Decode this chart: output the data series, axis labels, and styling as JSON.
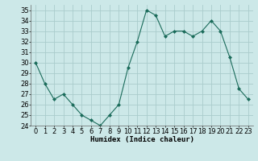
{
  "x": [
    0,
    1,
    2,
    3,
    4,
    5,
    6,
    7,
    8,
    9,
    10,
    11,
    12,
    13,
    14,
    15,
    16,
    17,
    18,
    19,
    20,
    21,
    22,
    23
  ],
  "y": [
    30,
    28,
    26.5,
    27,
    26,
    25,
    24.5,
    24,
    25,
    26,
    29.5,
    32,
    35,
    34.5,
    32.5,
    33,
    33,
    32.5,
    33,
    34,
    33,
    30.5,
    27.5,
    26.5
  ],
  "line_color": "#1a6b5a",
  "marker_color": "#1a6b5a",
  "bg_color": "#cce8e8",
  "grid_color": "#aacccc",
  "xlabel": "Humidex (Indice chaleur)",
  "xlabel_fontsize": 6.5,
  "tick_fontsize": 6,
  "ylim": [
    24,
    35.5
  ],
  "yticks": [
    24,
    25,
    26,
    27,
    28,
    29,
    30,
    31,
    32,
    33,
    34,
    35
  ],
  "xticks": [
    0,
    1,
    2,
    3,
    4,
    5,
    6,
    7,
    8,
    9,
    10,
    11,
    12,
    13,
    14,
    15,
    16,
    17,
    18,
    19,
    20,
    21,
    22,
    23
  ]
}
